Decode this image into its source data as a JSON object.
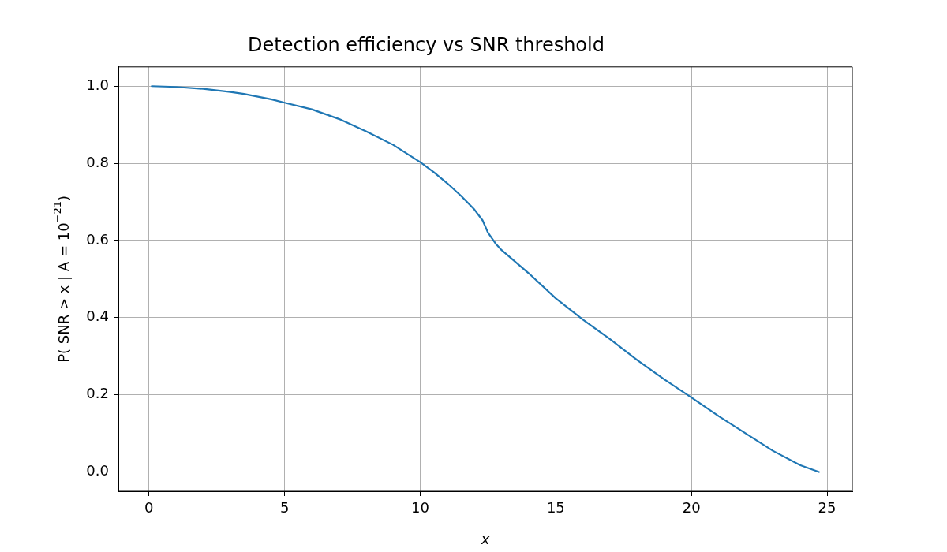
{
  "chart_data": {
    "type": "line",
    "title": "Detection efficiency vs SNR threshold",
    "xlabel": "x",
    "ylabel": "P( SNR > x | A = 10$^{−21}$)",
    "x": [
      0.1,
      1,
      2,
      3,
      3.5,
      4.5,
      5,
      6,
      7,
      8,
      9,
      10,
      10.5,
      11,
      11.5,
      12,
      12.3,
      12.5,
      12.8,
      13,
      13.5,
      14,
      15,
      16,
      17,
      18,
      19,
      20,
      21,
      22,
      23,
      24,
      24.5,
      24.7
    ],
    "series": [
      {
        "color": "#1f77b4",
        "values": [
          1.0,
          0.998,
          0.993,
          0.985,
          0.98,
          0.966,
          0.957,
          0.94,
          0.915,
          0.883,
          0.848,
          0.803,
          0.777,
          0.748,
          0.716,
          0.68,
          0.652,
          0.62,
          0.59,
          0.575,
          0.545,
          0.515,
          0.45,
          0.395,
          0.344,
          0.29,
          0.24,
          0.193,
          0.145,
          0.1,
          0.055,
          0.018,
          0.005,
          0.0
        ]
      }
    ],
    "xlim": [
      -1.13,
      25.93
    ],
    "ylim": [
      -0.05,
      1.05
    ],
    "xticks": [
      0,
      5,
      10,
      15,
      20,
      25
    ],
    "yticks": [
      {
        "value": 0,
        "label": "0.0"
      },
      {
        "value": 0.2,
        "label": "0.2"
      },
      {
        "value": 0.4,
        "label": "0.4"
      },
      {
        "value": 0.6,
        "label": "0.6"
      },
      {
        "value": 0.8,
        "label": "0.8"
      },
      {
        "value": 1,
        "label": "1.0"
      }
    ],
    "grid": true,
    "legend": false,
    "marker": "none",
    "line_style": "solid"
  }
}
